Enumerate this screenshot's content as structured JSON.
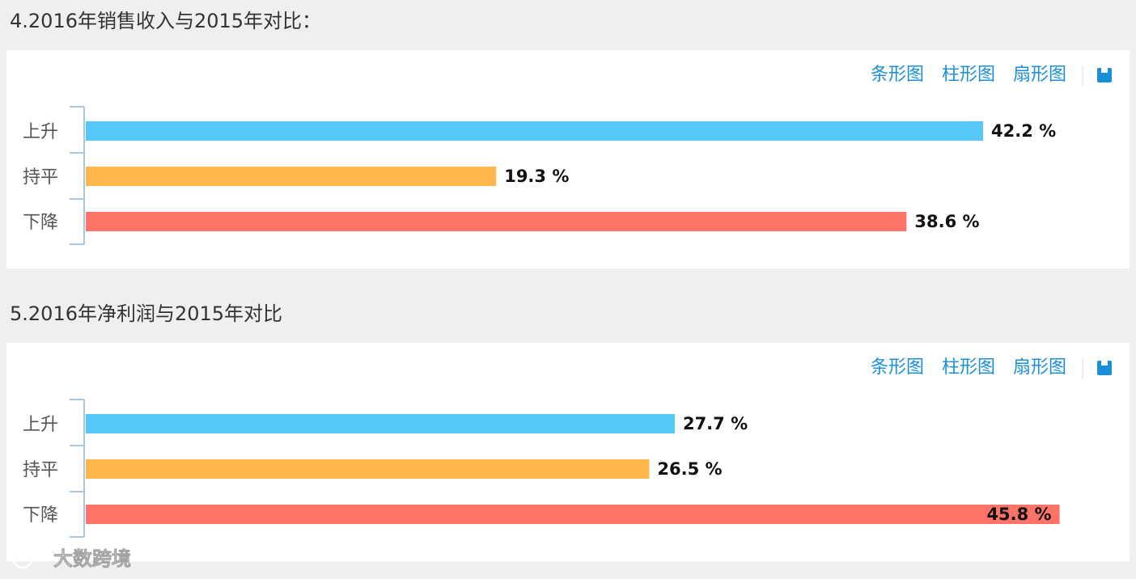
{
  "chart_data": [
    {
      "type": "bar",
      "orientation": "horizontal",
      "title": "4.2016年销售收入与2015年对比：",
      "categories": [
        "上升",
        "持平",
        "下降"
      ],
      "values": [
        42.2,
        19.3,
        38.6
      ],
      "value_labels": [
        "42.2 %",
        "19.3 %",
        "38.6 %"
      ],
      "colors": [
        "#56c8f8",
        "#ffb64d",
        "#ff7368"
      ],
      "toolbar": [
        "条形图",
        "柱形图",
        "扇形图"
      ]
    },
    {
      "type": "bar",
      "orientation": "horizontal",
      "title": "5.2016年净利润与2015年对比",
      "categories": [
        "上升",
        "持平",
        "下降"
      ],
      "values": [
        27.7,
        26.5,
        45.8
      ],
      "value_labels": [
        "27.7 %",
        "26.5 %",
        "45.8 %"
      ],
      "colors": [
        "#56c8f8",
        "#ffb64d",
        "#ff7368"
      ],
      "toolbar": [
        "条形图",
        "柱形图",
        "扇形图"
      ]
    }
  ],
  "watermark": "大数跨境"
}
